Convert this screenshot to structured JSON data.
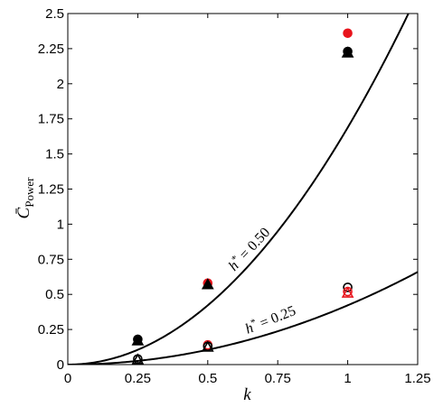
{
  "chart_data": {
    "type": "scatter",
    "title": "",
    "xlabel": "k",
    "ylabel_main": "C̄",
    "ylabel_sub": "Power",
    "xlim": [
      0,
      1.25
    ],
    "ylim": [
      0,
      2.5
    ],
    "x_ticks": [
      "0",
      "0.25",
      "0.5",
      "0.75",
      "1",
      "1.25"
    ],
    "y_ticks": [
      "0",
      "0.25",
      "0.5",
      "0.75",
      "1",
      "1.25",
      "1.5",
      "1.75",
      "2",
      "2.25",
      "2.5"
    ],
    "grid": false,
    "curves": [
      {
        "label_var": "h",
        "label_rhs": " = 0.50",
        "coef": 1.688,
        "exp": 2,
        "color": "#000000"
      },
      {
        "label_var": "h",
        "label_rhs": " = 0.25",
        "coef": 0.422,
        "exp": 2,
        "color": "#000000"
      }
    ],
    "markers": [
      {
        "x": 0.25,
        "y": 0.18,
        "shape": "circle",
        "filled": true,
        "color": "#000000"
      },
      {
        "x": 0.25,
        "y": 0.17,
        "shape": "triangle",
        "filled": true,
        "color": "#000000"
      },
      {
        "x": 0.5,
        "y": 0.58,
        "shape": "circle",
        "filled": true,
        "color": "#e8141c"
      },
      {
        "x": 0.5,
        "y": 0.57,
        "shape": "triangle",
        "filled": true,
        "color": "#000000"
      },
      {
        "x": 1.0,
        "y": 2.36,
        "shape": "circle",
        "filled": true,
        "color": "#e8141c"
      },
      {
        "x": 1.0,
        "y": 2.23,
        "shape": "circle",
        "filled": true,
        "color": "#000000"
      },
      {
        "x": 1.0,
        "y": 2.22,
        "shape": "triangle",
        "filled": true,
        "color": "#000000"
      },
      {
        "x": 0.25,
        "y": 0.04,
        "shape": "circle",
        "filled": false,
        "color": "#000000"
      },
      {
        "x": 0.25,
        "y": 0.035,
        "shape": "triangle",
        "filled": false,
        "color": "#000000"
      },
      {
        "x": 0.5,
        "y": 0.14,
        "shape": "circle",
        "filled": false,
        "color": "#e8141c"
      },
      {
        "x": 0.5,
        "y": 0.13,
        "shape": "circle",
        "filled": false,
        "color": "#000000"
      },
      {
        "x": 0.5,
        "y": 0.125,
        "shape": "triangle",
        "filled": false,
        "color": "#000000"
      },
      {
        "x": 1.0,
        "y": 0.55,
        "shape": "circle",
        "filled": false,
        "color": "#000000"
      },
      {
        "x": 1.0,
        "y": 0.52,
        "shape": "circle",
        "filled": false,
        "color": "#e8141c"
      },
      {
        "x": 1.0,
        "y": 0.51,
        "shape": "triangle",
        "filled": false,
        "color": "#e8141c"
      }
    ]
  }
}
